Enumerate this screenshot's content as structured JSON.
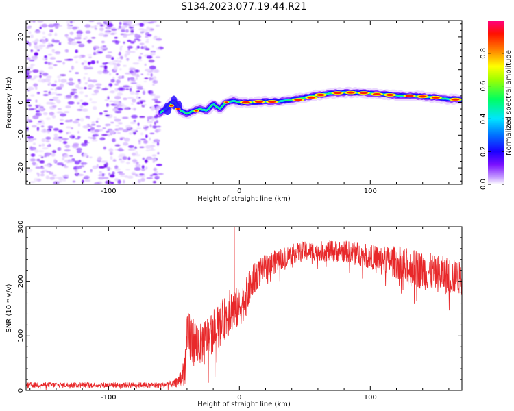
{
  "title": "S134.2023.077.19.44.R21",
  "chart_data": [
    {
      "type": "heatmap",
      "xlabel": "Height of straight line (km)",
      "ylabel": "Frequency (Hz)",
      "xlim": [
        -163,
        170
      ],
      "ylim": [
        -25,
        25
      ],
      "xticks": [
        -100,
        0,
        100
      ],
      "yticks": [
        -20,
        -10,
        0,
        10,
        20
      ],
      "noise_region_x": [
        -163,
        -60
      ],
      "ridge": {
        "x": [
          -60,
          -55,
          -50,
          -45,
          -40,
          -35,
          -30,
          -25,
          -20,
          -15,
          -10,
          -5,
          0,
          10,
          20,
          30,
          40,
          50,
          60,
          70,
          80,
          90,
          100,
          110,
          120,
          130,
          140,
          150,
          160,
          170
        ],
        "freq": [
          -3,
          -1.5,
          0.5,
          -2.5,
          -3.5,
          -2.5,
          -2,
          -2.5,
          -0.5,
          -2,
          0,
          0.5,
          0,
          0,
          0.3,
          0.3,
          0.8,
          1.5,
          2.3,
          2.8,
          3,
          3,
          2.8,
          2.5,
          2.2,
          2,
          1.8,
          1.5,
          1,
          0.8
        ]
      },
      "colorbar": {
        "label": "Normalized spectral amplitude",
        "range": [
          0,
          1
        ],
        "ticks": [
          "0.0",
          "0.2",
          "0.4",
          "0.6",
          "0.8"
        ],
        "colors": [
          "#ffffff",
          "#b06cff",
          "#6a00ff",
          "#0000ff",
          "#00e5ff",
          "#00ff40",
          "#ffff00",
          "#ff8000",
          "#ff0000",
          "#ff0080"
        ]
      }
    },
    {
      "type": "line",
      "xlabel": "Height of straight line (km)",
      "ylabel": "SNR (10 * v/v)",
      "xlim": [
        -163,
        170
      ],
      "ylim": [
        0,
        300
      ],
      "xticks": [
        -100,
        0,
        100
      ],
      "yticks": [
        0,
        100,
        200,
        300
      ],
      "color": "#e8282a",
      "envelope": {
        "x": [
          -163,
          -60,
          -50,
          -45,
          -42,
          -40,
          -38,
          -35,
          -30,
          -25,
          -20,
          -15,
          -10,
          -5,
          0,
          5,
          10,
          15,
          20,
          30,
          40,
          50,
          60,
          70,
          80,
          90,
          100,
          110,
          120,
          125,
          130,
          140,
          150,
          160,
          170
        ],
        "mean": [
          10,
          10,
          12,
          20,
          40,
          80,
          100,
          90,
          85,
          95,
          110,
          120,
          135,
          150,
          150,
          170,
          200,
          215,
          225,
          240,
          250,
          255,
          255,
          255,
          255,
          250,
          245,
          240,
          235,
          225,
          225,
          220,
          215,
          210,
          205
        ],
        "amp": [
          5,
          5,
          6,
          15,
          30,
          55,
          55,
          45,
          40,
          40,
          40,
          40,
          40,
          45,
          35,
          35,
          30,
          25,
          25,
          20,
          18,
          18,
          18,
          20,
          20,
          22,
          22,
          25,
          30,
          40,
          35,
          35,
          35,
          35,
          30
        ]
      },
      "spike": {
        "x": -4,
        "y": 300
      }
    }
  ]
}
